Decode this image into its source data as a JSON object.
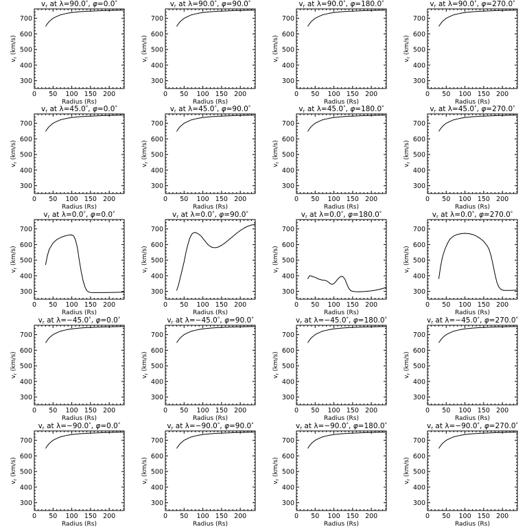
{
  "chart_data": {
    "type": "line",
    "layout": "grid 5 rows x 4 columns",
    "x_label": "Radius (Rs)",
    "y_label": "v",
    "y_label_subscript": "r",
    "y_label_units": " (km/s)",
    "xlim": [
      0,
      240
    ],
    "ylim": [
      250,
      760
    ],
    "x_ticks": [
      0,
      50,
      100,
      150,
      200
    ],
    "y_ticks": [
      300,
      400,
      500,
      600,
      700
    ],
    "latitudes": [
      "90.0",
      "45.0",
      "0.0",
      "-45.0",
      "-90.0"
    ],
    "longitudes": [
      "0.0",
      "90.0",
      "180.0",
      "270.0"
    ],
    "panels": [
      {
        "lambda": "90.0",
        "phi": "0.0",
        "series": "fast"
      },
      {
        "lambda": "90.0",
        "phi": "90.0",
        "series": "fast"
      },
      {
        "lambda": "90.0",
        "phi": "180.0",
        "series": "fast"
      },
      {
        "lambda": "90.0",
        "phi": "270.0",
        "series": "fast"
      },
      {
        "lambda": "45.0",
        "phi": "0.0",
        "series": "fast"
      },
      {
        "lambda": "45.0",
        "phi": "90.0",
        "series": "fast"
      },
      {
        "lambda": "45.0",
        "phi": "180.0",
        "series": "fast"
      },
      {
        "lambda": "45.0",
        "phi": "270.0",
        "series": "fast"
      },
      {
        "lambda": "0.0",
        "phi": "0.0",
        "series": "eq0"
      },
      {
        "lambda": "0.0",
        "phi": "90.0",
        "series": "eq90"
      },
      {
        "lambda": "0.0",
        "phi": "180.0",
        "series": "eq180"
      },
      {
        "lambda": "0.0",
        "phi": "270.0",
        "series": "eq270"
      },
      {
        "lambda": "−45.0",
        "phi": "0.0",
        "series": "fast"
      },
      {
        "lambda": "−45.0",
        "phi": "90.0",
        "series": "fast"
      },
      {
        "lambda": "−45.0",
        "phi": "180.0",
        "series": "fast"
      },
      {
        "lambda": "−45.0",
        "phi": "270.0",
        "series": "fast"
      },
      {
        "lambda": "−90.0",
        "phi": "0.0",
        "series": "fast"
      },
      {
        "lambda": "−90.0",
        "phi": "90.0",
        "series": "fast"
      },
      {
        "lambda": "−90.0",
        "phi": "180.0",
        "series": "fast"
      },
      {
        "lambda": "−90.0",
        "phi": "270.0",
        "series": "fast"
      }
    ],
    "series_data": {
      "fast": {
        "x": [
          30,
          35,
          40,
          45,
          50,
          60,
          70,
          80,
          90,
          100,
          120,
          140,
          160,
          180,
          200,
          220,
          240
        ],
        "y": [
          648,
          665,
          680,
          690,
          700,
          712,
          722,
          728,
          733,
          737,
          742,
          745,
          747,
          749,
          750,
          751,
          752
        ]
      },
      "eq0": {
        "x": [
          30,
          35,
          40,
          50,
          60,
          70,
          80,
          90,
          100,
          105,
          110,
          115,
          120,
          125,
          130,
          135,
          140,
          145,
          150,
          160,
          180,
          200,
          220,
          240
        ],
        "y": [
          470,
          530,
          570,
          610,
          632,
          645,
          654,
          660,
          662,
          655,
          630,
          580,
          500,
          430,
          370,
          330,
          305,
          296,
          293,
          292,
          292,
          293,
          294,
          295
        ]
      },
      "eq90": {
        "x": [
          30,
          35,
          40,
          45,
          50,
          55,
          60,
          65,
          70,
          75,
          80,
          85,
          90,
          95,
          100,
          105,
          110,
          115,
          120,
          125,
          130,
          135,
          140,
          150,
          160,
          170,
          180,
          190,
          200,
          210,
          220,
          230,
          240
        ],
        "y": [
          305,
          340,
          390,
          440,
          490,
          550,
          600,
          640,
          665,
          675,
          678,
          672,
          665,
          655,
          640,
          625,
          610,
          597,
          588,
          582,
          580,
          580,
          583,
          595,
          612,
          632,
          652,
          672,
          690,
          705,
          718,
          725,
          730
        ]
      },
      "eq180": {
        "x": [
          30,
          35,
          40,
          45,
          50,
          55,
          60,
          65,
          70,
          75,
          80,
          85,
          90,
          95,
          100,
          105,
          110,
          115,
          120,
          125,
          130,
          135,
          140,
          145,
          150,
          155,
          160,
          170,
          180,
          190,
          200,
          210,
          220,
          230,
          240
        ],
        "y": [
          380,
          400,
          398,
          393,
          390,
          384,
          378,
          375,
          372,
          372,
          368,
          360,
          350,
          345,
          350,
          362,
          378,
          390,
          397,
          393,
          375,
          345,
          318,
          305,
          300,
          299,
          298,
          298,
          299,
          301,
          303,
          307,
          312,
          318,
          325
        ]
      },
      "eq270": {
        "x": [
          30,
          35,
          40,
          45,
          50,
          55,
          60,
          70,
          80,
          90,
          100,
          110,
          120,
          130,
          140,
          150,
          160,
          165,
          170,
          175,
          180,
          185,
          190,
          195,
          200,
          205,
          210,
          220,
          230,
          240
        ],
        "y": [
          380,
          460,
          520,
          560,
          590,
          615,
          635,
          655,
          665,
          670,
          672,
          670,
          665,
          655,
          640,
          620,
          590,
          565,
          525,
          470,
          410,
          360,
          330,
          315,
          308,
          306,
          306,
          306,
          307,
          308
        ]
      }
    }
  }
}
